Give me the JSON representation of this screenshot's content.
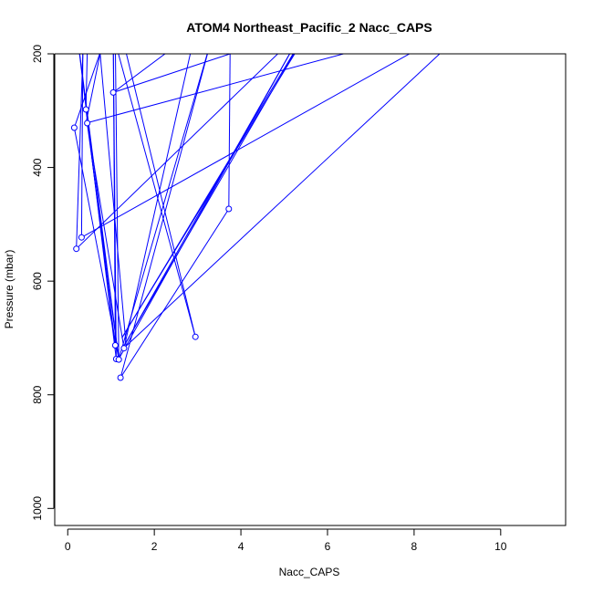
{
  "chart_data": {
    "type": "line",
    "title": "ATOM4 Northeast_Pacific_2 Nacc_CAPS",
    "xlabel": "Nacc_CAPS",
    "ylabel": "Pressure (mbar)",
    "xlim": [
      -0.3,
      11.5
    ],
    "ylim": [
      1030,
      200
    ],
    "y_axis_inverted": true,
    "xticks": [
      0,
      2,
      4,
      6,
      8,
      10
    ],
    "yticks": [
      200,
      400,
      600,
      800,
      1000
    ],
    "grid": false,
    "line_color": "#0000ff",
    "marker": "open-circle",
    "series": [
      {
        "points_in_plot": [
          [
            0.45,
            200
          ],
          [
            0.42,
            298
          ],
          [
            1.1,
            713
          ],
          [
            1.05,
            165
          ],
          [
            1.12,
            737
          ],
          [
            0.18,
            142
          ],
          [
            1.18,
            738
          ],
          [
            0.45,
            322
          ],
          [
            1.3,
            718
          ],
          [
            2.95,
            160
          ],
          [
            1.05,
            268
          ],
          [
            3.75,
            200
          ],
          [
            3.72,
            473
          ],
          [
            1.22,
            770
          ],
          [
            3.3,
            180
          ],
          [
            1.18,
            737
          ],
          [
            1.1,
            180
          ],
          [
            2.95,
            698
          ],
          [
            1.1,
            120
          ],
          [
            0.15,
            330
          ],
          [
            1.18,
            737
          ],
          [
            5.2,
            190
          ],
          [
            1.3,
            714
          ],
          [
            5.6,
            150
          ],
          [
            1.25,
            700
          ],
          [
            5.8,
            130
          ],
          [
            0.2,
            543
          ],
          [
            0.35,
            200
          ],
          [
            0.32,
            523
          ],
          [
            9.3,
            140
          ],
          [
            0.42,
            322
          ],
          [
            0.75,
            200
          ],
          [
            1.35,
            714
          ],
          [
            10.0,
            100
          ]
        ],
        "markers": [
          [
            0.42,
            298
          ],
          [
            1.1,
            713
          ],
          [
            1.12,
            737
          ],
          [
            1.18,
            738
          ],
          [
            0.45,
            322
          ],
          [
            1.3,
            718
          ],
          [
            1.05,
            268
          ],
          [
            3.72,
            473
          ],
          [
            1.22,
            770
          ],
          [
            2.95,
            698
          ],
          [
            0.15,
            330
          ],
          [
            0.2,
            543
          ],
          [
            0.32,
            523
          ]
        ]
      }
    ]
  }
}
